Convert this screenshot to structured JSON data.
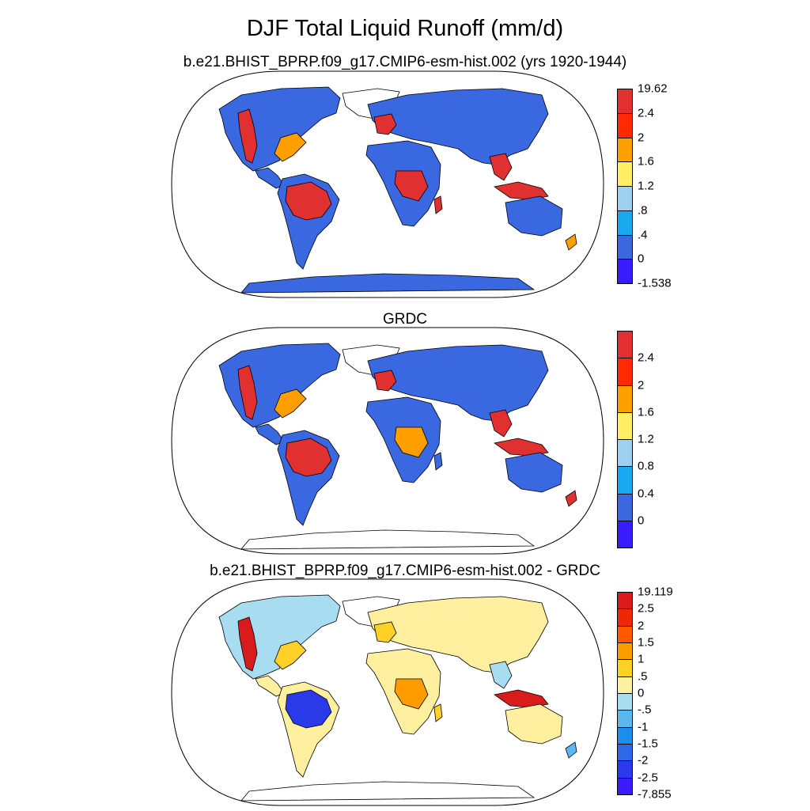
{
  "figure": {
    "title": "DJF Total Liquid Runoff (mm/d)"
  },
  "panels": [
    {
      "id": "model",
      "title": "b.e21.BHIST_BPRP.f09_g17.CMIP6-esm-hist.002 (yrs 1920-1944)",
      "colorbar": {
        "colors": [
          "#e03030",
          "#ff2a00",
          "#ffa000",
          "#ffee66",
          "#a0d0f0",
          "#1aa8f0",
          "#3a68e0",
          "#3a1aff"
        ],
        "labels": [
          "19.62",
          "2.4",
          "2",
          "1.6",
          "1.2",
          ".8",
          ".4",
          "0",
          "-1.538"
        ]
      }
    },
    {
      "id": "obs",
      "title": "GRDC",
      "colorbar": {
        "colors": [
          "#e03030",
          "#ff2a00",
          "#ffa000",
          "#ffee66",
          "#a0d0f0",
          "#1aa8f0",
          "#3a68e0",
          "#3a1aff"
        ],
        "labels": [
          "2.4",
          "2",
          "1.6",
          "1.2",
          "0.8",
          "0.4",
          "0"
        ]
      }
    },
    {
      "id": "diff",
      "title": "b.e21.BHIST_BPRP.f09_g17.CMIP6-esm-hist.002 - GRDC",
      "colorbar": {
        "colors": [
          "#d81b1b",
          "#ec2a00",
          "#ff5a00",
          "#ff9c00",
          "#ffd028",
          "#fff0a0",
          "#a8dcf0",
          "#5ab8f0",
          "#1a8ff0",
          "#2a6ae6",
          "#2a3ae8",
          "#3a1aff"
        ],
        "labels": [
          "19.119",
          "2.5",
          "2",
          "1.5",
          "1",
          ".5",
          "0",
          "-.5",
          "-1",
          "-1.5",
          "-2",
          "-2.5",
          "-7.855"
        ]
      }
    }
  ],
  "region_colors": {
    "model": {
      "north_america": "#3a68e0",
      "na_west_coast": "#e03030",
      "na_east": "#ffa000",
      "central_america": "#3a68e0",
      "south_america": "#3a68e0",
      "amazon": "#e03030",
      "europe_asia": "#3a68e0",
      "west_europe": "#e03030",
      "africa": "#3a68e0",
      "central_africa": "#e03030",
      "madagascar": "#e03030",
      "se_asia": "#e03030",
      "indonesia": "#e03030",
      "australia": "#3a68e0",
      "new_zealand": "#ffa000",
      "antarctica": "#3a68e0",
      "greenland": "#ffffff"
    },
    "obs": {
      "north_america": "#3a68e0",
      "na_west_coast": "#e03030",
      "na_east": "#ffa000",
      "central_america": "#3a68e0",
      "south_america": "#3a68e0",
      "amazon": "#e03030",
      "europe_asia": "#3a68e0",
      "west_europe": "#e03030",
      "africa": "#3a68e0",
      "central_africa": "#ffa000",
      "madagascar": "#3a68e0",
      "se_asia": "#e03030",
      "indonesia": "#e03030",
      "australia": "#3a68e0",
      "new_zealand": "#e03030",
      "antarctica": "#ffffff",
      "greenland": "#ffffff"
    },
    "diff": {
      "north_america": "#a8dcf0",
      "na_west_coast": "#d81b1b",
      "na_east": "#ffd028",
      "central_america": "#fff0a0",
      "south_america": "#fff0a0",
      "amazon": "#2a3ae8",
      "europe_asia": "#fff0a0",
      "west_europe": "#ffd028",
      "africa": "#fff0a0",
      "central_africa": "#ff9c00",
      "madagascar": "#ffd028",
      "se_asia": "#a8dcf0",
      "indonesia": "#d81b1b",
      "australia": "#fff0a0",
      "new_zealand": "#5ab8f0",
      "antarctica": "#ffffff",
      "greenland": "#ffffff"
    }
  }
}
